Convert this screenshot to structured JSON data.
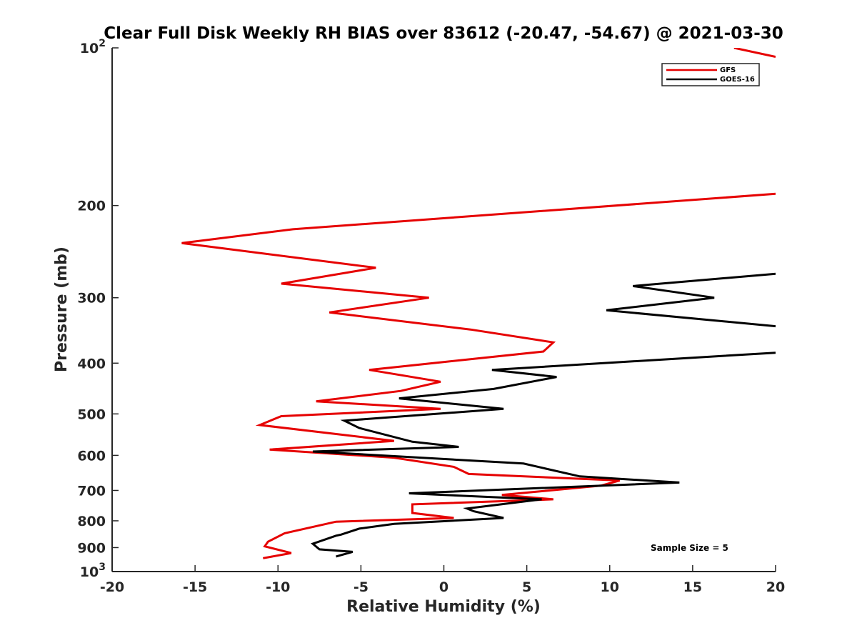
{
  "chart_data": {
    "type": "line",
    "title": "Clear Full Disk Weekly RH BIAS over 83612 (-20.47, -54.67) @ 2021-03-30",
    "xlabel": "Relative Humidity (%)",
    "ylabel": "Pressure (mb)",
    "xlim": [
      -20,
      20
    ],
    "ylim": [
      100,
      1000
    ],
    "y_scale": "log-reversed",
    "x_ticks": [
      "-20",
      "-15",
      "-10",
      "-5",
      "0",
      "5",
      "10",
      "15",
      "20"
    ],
    "y_ticks": [
      {
        "value": 100,
        "base": "10",
        "exp": "2"
      },
      {
        "value": 200,
        "label": "200"
      },
      {
        "value": 300,
        "label": "300"
      },
      {
        "value": 400,
        "label": "400"
      },
      {
        "value": 500,
        "label": "500"
      },
      {
        "value": 600,
        "label": "600"
      },
      {
        "value": 700,
        "label": "700"
      },
      {
        "value": 800,
        "label": "800"
      },
      {
        "value": 900,
        "label": "900"
      },
      {
        "value": 1000,
        "base": "10",
        "exp": "3"
      }
    ],
    "grid": false,
    "legend_position": "top-right",
    "annotation": "Sample Size = 5",
    "series": [
      {
        "name": "GFS",
        "color": "#e60000",
        "points": [
          [
            17.5,
            100
          ],
          [
            20.0,
            104
          ],
          [
            20.0,
            190
          ],
          [
            -9.1,
            222
          ],
          [
            -15.8,
            236
          ],
          [
            -4.1,
            263
          ],
          [
            -9.8,
            282
          ],
          [
            -0.9,
            300
          ],
          [
            -6.9,
            320
          ],
          [
            1.6,
            345
          ],
          [
            6.6,
            365
          ],
          [
            6.0,
            380
          ],
          [
            -4.5,
            412
          ],
          [
            -0.2,
            434
          ],
          [
            -2.6,
            452
          ],
          [
            -7.7,
            473
          ],
          [
            -0.2,
            489
          ],
          [
            -9.8,
            505
          ],
          [
            -11.1,
            525
          ],
          [
            -3.0,
            563
          ],
          [
            -10.5,
            585
          ],
          [
            -3.0,
            606
          ],
          [
            0.6,
            631
          ],
          [
            1.5,
            651
          ],
          [
            10.6,
            670
          ],
          [
            9.5,
            685
          ],
          [
            3.5,
            714
          ],
          [
            6.6,
            728
          ],
          [
            -1.9,
            744
          ],
          [
            -1.9,
            773
          ],
          [
            0.6,
            790
          ],
          [
            -6.5,
            803
          ],
          [
            -9.6,
            845
          ],
          [
            -10.6,
            877
          ],
          [
            -10.8,
            895
          ],
          [
            -9.2,
            922
          ],
          [
            -10.9,
            943
          ]
        ]
      },
      {
        "name": "GOES-16",
        "color": "#000000",
        "points": [
          [
            20.0,
            270
          ],
          [
            11.4,
            285
          ],
          [
            16.3,
            300
          ],
          [
            9.8,
            317
          ],
          [
            20.0,
            340
          ],
          [
            20.0,
            382
          ],
          [
            2.9,
            412
          ],
          [
            6.8,
            425
          ],
          [
            3.0,
            448
          ],
          [
            -2.7,
            467
          ],
          [
            3.6,
            489
          ],
          [
            -6.0,
            515
          ],
          [
            -5.1,
            532
          ],
          [
            -1.9,
            565
          ],
          [
            0.9,
            578
          ],
          [
            -7.9,
            590
          ],
          [
            4.8,
            622
          ],
          [
            8.2,
            658
          ],
          [
            14.2,
            676
          ],
          [
            -2.1,
            709
          ],
          [
            5.9,
            728
          ],
          [
            1.4,
            758
          ],
          [
            1.8,
            767
          ],
          [
            3.6,
            790
          ],
          [
            -3.0,
            811
          ],
          [
            -5.1,
            828
          ],
          [
            -6.2,
            850
          ],
          [
            -6.5,
            854
          ],
          [
            -7.9,
            885
          ],
          [
            -7.5,
            907
          ],
          [
            -5.5,
            917
          ],
          [
            -6.5,
            936
          ]
        ]
      }
    ]
  }
}
